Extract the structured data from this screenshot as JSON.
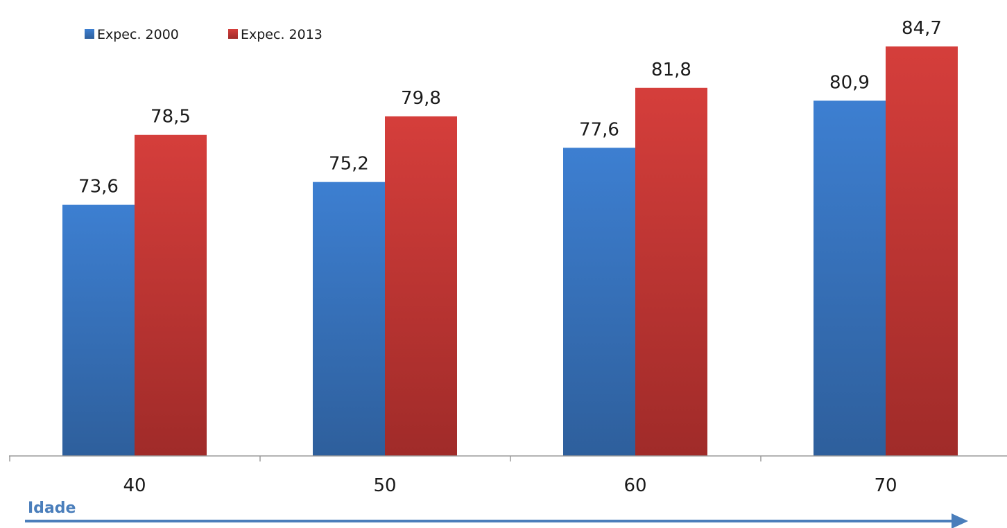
{
  "chart_data": {
    "type": "bar",
    "categories": [
      "40",
      "50",
      "60",
      "70"
    ],
    "series": [
      {
        "name": "Expec. 2000",
        "values": [
          73.6,
          75.2,
          77.6,
          80.9
        ],
        "labels": [
          "73,6",
          "75,2",
          "77,6",
          "80,9"
        ],
        "color": "#3a78c8"
      },
      {
        "name": "Expec. 2013",
        "values": [
          78.5,
          79.8,
          81.8,
          84.7
        ],
        "labels": [
          "78,5",
          "79,8",
          "81,8",
          "84,7"
        ],
        "color": "#cc3a38"
      }
    ],
    "xlabel": "Idade",
    "ylim": [
      56.0,
      86.5
    ],
    "grid": false,
    "legend": "top-left",
    "axis_color": "#4a7ebb"
  }
}
